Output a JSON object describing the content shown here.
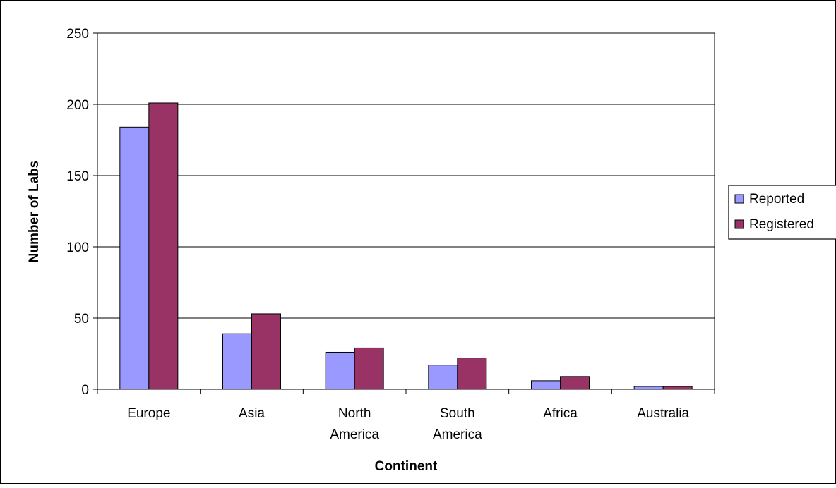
{
  "chart_data": {
    "type": "bar",
    "title": "",
    "xlabel": "Continent",
    "ylabel": "Number of Labs",
    "categories": [
      "Europe",
      "Asia",
      "North America",
      "South America",
      "Africa",
      "Australia"
    ],
    "category_lines": [
      [
        "Europe"
      ],
      [
        "Asia"
      ],
      [
        "North",
        "America"
      ],
      [
        "South",
        "America"
      ],
      [
        "Africa"
      ],
      [
        "Australia"
      ]
    ],
    "series": [
      {
        "name": "Reported",
        "values": [
          184,
          39,
          26,
          17,
          6,
          2
        ],
        "color": "#9999ff"
      },
      {
        "name": "Registered",
        "values": [
          201,
          53,
          29,
          22,
          9,
          2
        ],
        "color": "#993366"
      }
    ],
    "ylim": [
      0,
      250
    ],
    "yticks": [
      0,
      50,
      100,
      150,
      200,
      250
    ],
    "grid": true,
    "legend_position": "right"
  }
}
